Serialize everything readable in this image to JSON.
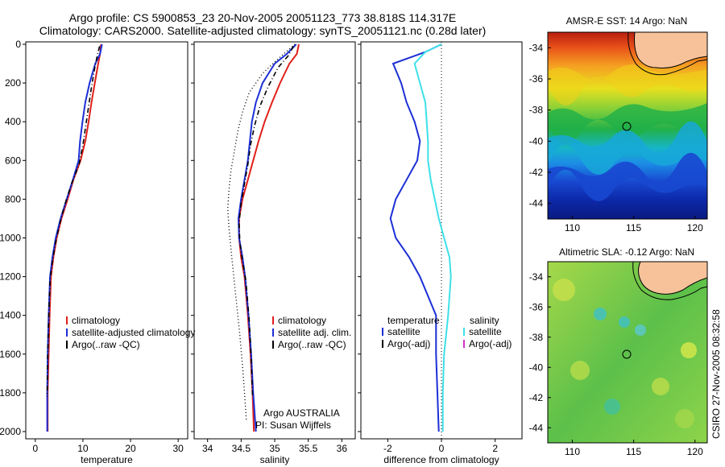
{
  "header": {
    "line1": "Argo profile: CS 5900853_23 20-Nov-2005 20051123_773 38.818S 114.317E",
    "line2": "Climatology: CARS2000. Satellite-adjusted climatology: synTS_20051121.nc (0.28d later)"
  },
  "colors": {
    "climatology": "#e0201a",
    "satellite": "#1c2fd6",
    "argo": "#000000",
    "sal_satellite": "#3ee0e8",
    "argo_adj": "#cc33cc",
    "land": "#f7c29a"
  },
  "side_text": "CSIRO 27-Nov-2005 08:32:58",
  "chart_data": [
    {
      "type": "line",
      "id": "temperature",
      "xlabel": "temperature",
      "ylabel": "",
      "xlim": [
        -2,
        32
      ],
      "ylim": [
        2050,
        0
      ],
      "xticks": [
        "0",
        "10",
        "20",
        "30"
      ],
      "xtick_values": [
        0,
        10,
        20,
        30
      ],
      "yticks": [
        "0",
        "200",
        "400",
        "600",
        "800",
        "1000",
        "1200",
        "1400",
        "1600",
        "1800",
        "2000"
      ],
      "ytick_values": [
        0,
        200,
        400,
        600,
        800,
        1000,
        1200,
        1400,
        1600,
        1800,
        2000
      ],
      "legend": [
        "climatology",
        "satellite-adjusted climatology",
        "Argo(..raw -QC)"
      ],
      "series": [
        {
          "name": "climatology",
          "role": "climatology",
          "style": "solid",
          "x": [
            13.8,
            13.6,
            13.2,
            12.5,
            11.8,
            11.2,
            10.5,
            9.5,
            8.0,
            6.8,
            5.5,
            4.5,
            3.8,
            3.3,
            3.0,
            2.8,
            2.6,
            2.6
          ],
          "y": [
            0,
            50,
            100,
            200,
            300,
            400,
            500,
            600,
            700,
            800,
            900,
            1000,
            1100,
            1200,
            1400,
            1600,
            1800,
            2000
          ]
        },
        {
          "name": "satellite-adjusted climatology",
          "role": "satellite",
          "style": "solid",
          "x": [
            14.0,
            13.6,
            12.6,
            11.4,
            10.5,
            9.9,
            9.4,
            9.1,
            7.9,
            6.6,
            5.3,
            4.3,
            3.6,
            3.1,
            2.8,
            2.6,
            2.5,
            2.5
          ],
          "y": [
            0,
            50,
            100,
            200,
            300,
            400,
            500,
            600,
            700,
            800,
            900,
            1000,
            1100,
            1200,
            1400,
            1600,
            1800,
            2000
          ]
        },
        {
          "name": "Argo(..raw -QC)",
          "role": "argo",
          "style": "dashdot",
          "x": [
            13.5,
            13.0,
            12.5,
            11.8,
            11.2,
            10.6,
            10.0,
            9.2,
            7.6,
            6.3,
            5.2,
            4.3,
            3.6,
            3.1,
            2.8,
            2.6,
            2.5
          ],
          "y": [
            10,
            60,
            120,
            220,
            320,
            420,
            520,
            620,
            720,
            820,
            920,
            1020,
            1120,
            1220,
            1420,
            1620,
            1820
          ]
        }
      ]
    },
    {
      "type": "line",
      "id": "salinity",
      "xlabel": "salinity",
      "ylabel": "",
      "xlim": [
        33.8,
        36.2
      ],
      "ylim": [
        2050,
        0
      ],
      "xticks": [
        "34",
        "34.5",
        "35",
        "35.5",
        "36"
      ],
      "xtick_values": [
        34,
        34.5,
        35,
        35.5,
        36
      ],
      "legend": [
        "climatology",
        "satellite adj. clim.",
        "Argo(..raw -QC)"
      ],
      "annotation": [
        "Argo AUSTRALIA",
        "PI: Susan Wijffels"
      ],
      "series": [
        {
          "name": "climatology",
          "role": "climatology",
          "style": "solid",
          "x": [
            35.36,
            35.33,
            35.22,
            35.08,
            34.96,
            34.85,
            34.76,
            34.68,
            34.6,
            34.52,
            34.47,
            34.47,
            34.5,
            34.55,
            34.6,
            34.64,
            34.67,
            34.69
          ],
          "y": [
            0,
            50,
            100,
            200,
            300,
            400,
            500,
            600,
            700,
            800,
            900,
            1000,
            1100,
            1200,
            1400,
            1600,
            1800,
            2000
          ]
        },
        {
          "name": "satellite adj. clim.",
          "role": "satellite",
          "style": "solid",
          "x": [
            35.32,
            35.18,
            35.0,
            34.82,
            34.72,
            34.66,
            34.63,
            34.6,
            34.55,
            34.5,
            34.46,
            34.47,
            34.52,
            34.56,
            34.61,
            34.65,
            34.68,
            34.72
          ],
          "y": [
            0,
            50,
            100,
            200,
            300,
            400,
            500,
            600,
            700,
            800,
            900,
            1000,
            1100,
            1200,
            1400,
            1600,
            1800,
            2000
          ]
        },
        {
          "name": "Argo(..raw -QC)",
          "role": "argo",
          "style": "dashdot",
          "x": [
            35.28,
            35.2,
            35.05,
            34.9,
            34.78,
            34.7,
            34.64,
            34.6,
            34.55,
            34.5,
            34.47,
            34.48,
            34.52,
            34.57,
            34.62,
            34.65,
            34.67
          ],
          "y": [
            10,
            60,
            120,
            220,
            320,
            420,
            520,
            620,
            720,
            820,
            920,
            1020,
            1120,
            1220,
            1420,
            1620,
            1820
          ]
        },
        {
          "name": "",
          "role": "argo",
          "style": "dotted",
          "x": [
            35.3,
            35.1,
            34.82,
            34.62,
            34.52,
            34.45,
            34.4,
            34.35,
            34.32,
            34.3,
            34.32,
            34.36,
            34.42,
            34.48,
            34.53,
            34.58
          ],
          "y": [
            0,
            60,
            150,
            250,
            350,
            450,
            550,
            650,
            750,
            850,
            950,
            1100,
            1300,
            1500,
            1700,
            1950
          ]
        }
      ]
    },
    {
      "type": "line",
      "id": "difference",
      "xlabel": "difference from climatology",
      "ylabel": "",
      "xlim": [
        -3,
        3
      ],
      "ylim": [
        2050,
        0
      ],
      "xticks": [
        "-2",
        "0",
        "2"
      ],
      "xtick_values": [
        -2,
        0,
        2
      ],
      "zero_line": 0,
      "legend_left_title": "temperature",
      "legend_left": [
        "satellite",
        "Argo(-adj)"
      ],
      "legend_right_title": "salinity",
      "legend_right": [
        "satellite",
        "Argo(-adj)"
      ],
      "series": [
        {
          "name": "satellite",
          "role": "satellite",
          "style": "solid",
          "x": [
            0,
            -0.6,
            -1.8,
            -1.5,
            -1.3,
            -1.0,
            -0.8,
            -0.9,
            -1.3,
            -1.7,
            -1.9,
            -1.7,
            -1.2,
            -0.8,
            -0.2,
            -0.2,
            -0.15,
            -0.1
          ],
          "y": [
            0,
            40,
            100,
            200,
            300,
            400,
            500,
            600,
            700,
            800,
            900,
            1000,
            1100,
            1200,
            1400,
            1600,
            1800,
            2000
          ]
        },
        {
          "name": "satellite",
          "role": "sal_satellite",
          "style": "solid",
          "x": [
            0,
            -0.6,
            -1.0,
            -0.8,
            -0.6,
            -0.55,
            -0.5,
            -0.5,
            -0.4,
            -0.25,
            -0.1,
            0.1,
            0.3,
            0.35,
            0.25,
            0.1,
            0.05,
            0.05
          ],
          "y": [
            0,
            40,
            100,
            200,
            300,
            400,
            500,
            600,
            700,
            800,
            900,
            1000,
            1100,
            1200,
            1400,
            1600,
            1800,
            2000
          ]
        }
      ]
    }
  ],
  "maps": [
    {
      "id": "sst",
      "title": "AMSR-E SST: 14 Argo: NaN",
      "xticks": [
        "110",
        "115",
        "120"
      ],
      "xtick_values": [
        110,
        115,
        120
      ],
      "yticks": [
        "-34",
        "-36",
        "-38",
        "-40",
        "-42",
        "-44"
      ],
      "ytick_values": [
        -34,
        -36,
        -38,
        -40,
        -42,
        -44
      ],
      "xlim": [
        108,
        121
      ],
      "ylim": [
        -45,
        -33
      ],
      "marker": [
        114.317,
        -38.818
      ]
    },
    {
      "id": "sla",
      "title": "Altimetric SLA: -0.12 Argo: NaN",
      "xticks": [
        "110",
        "115",
        "120"
      ],
      "xtick_values": [
        110,
        115,
        120
      ],
      "yticks": [
        "-34",
        "-36",
        "-38",
        "-40",
        "-42",
        "-44"
      ],
      "ytick_values": [
        -34,
        -36,
        -38,
        -40,
        -42,
        -44
      ],
      "xlim": [
        108,
        121
      ],
      "ylim": [
        -45,
        -33
      ],
      "marker": [
        114.317,
        -38.818
      ]
    }
  ]
}
